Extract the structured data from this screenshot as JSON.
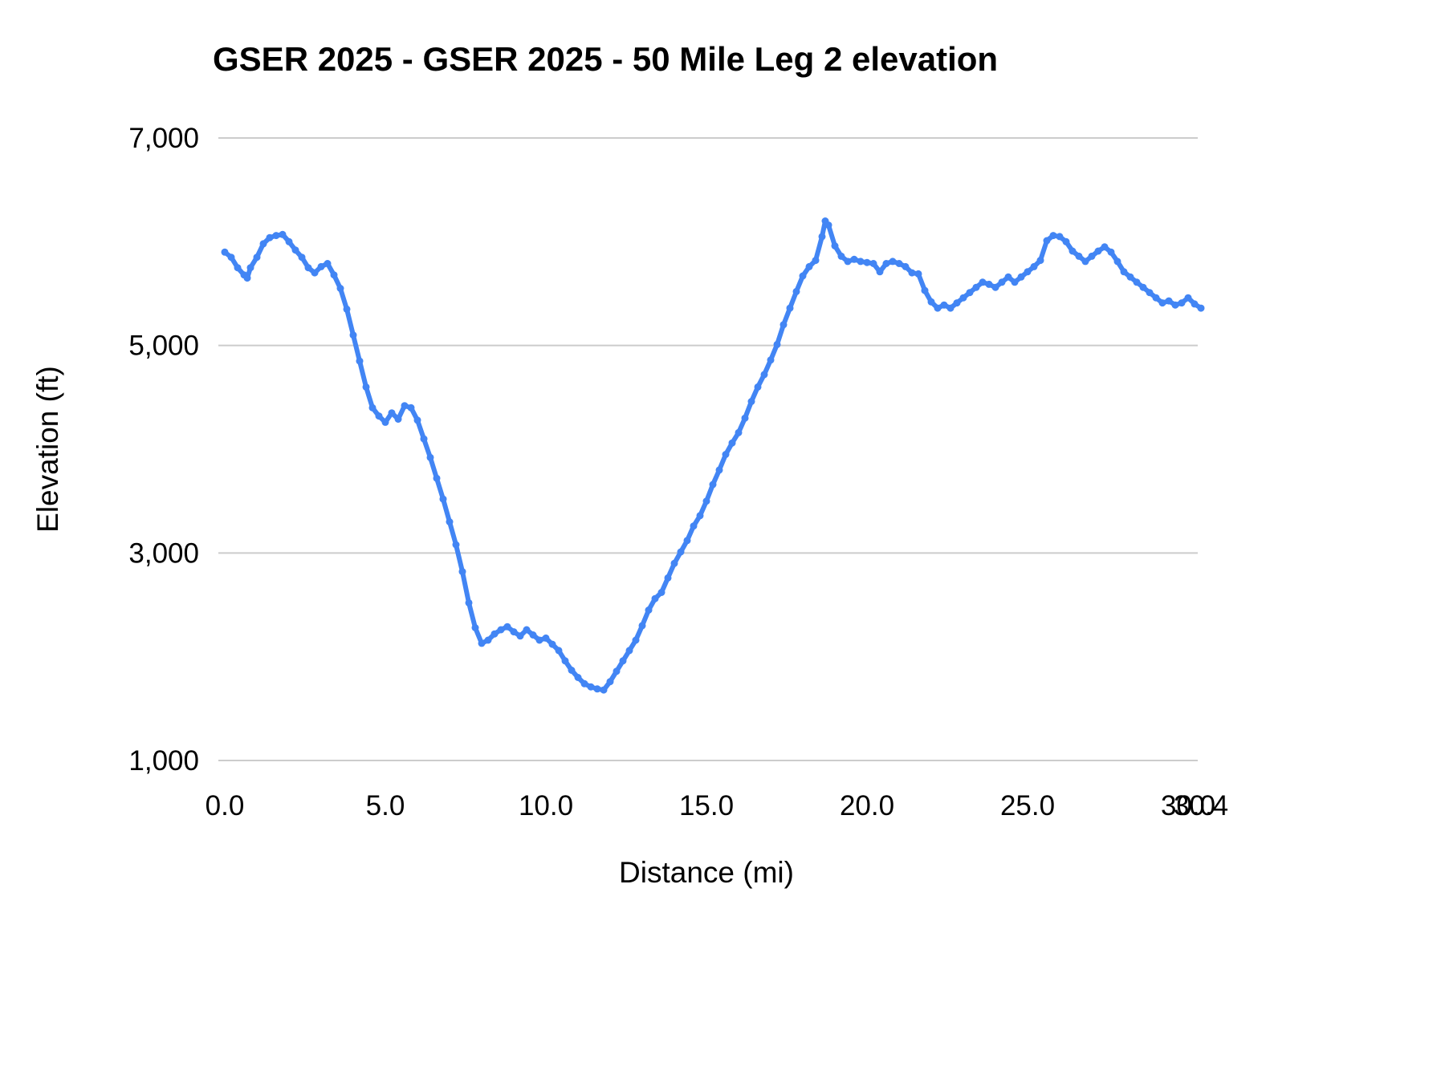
{
  "chart_data": {
    "type": "line",
    "title": "GSER 2025 - GSER 2025 - 50 Mile Leg 2 elevation",
    "xlabel": "Distance (mi)",
    "ylabel": "Elevation (ft)",
    "xlim": [
      0,
      30.4
    ],
    "ylim": [
      1000,
      7000
    ],
    "grid": "horizontal",
    "legend": "none",
    "line_color": "#4285f4",
    "gridline_color": "#cccccc",
    "text_color": "#000000",
    "background_color": "#ffffff",
    "x_ticks": [
      {
        "value": 0,
        "label": "0.0"
      },
      {
        "value": 5,
        "label": "5.0"
      },
      {
        "value": 10,
        "label": "10.0"
      },
      {
        "value": 15,
        "label": "15.0"
      },
      {
        "value": 20,
        "label": "20.0"
      },
      {
        "value": 25,
        "label": "25.0"
      },
      {
        "value": 30,
        "label": "30.0"
      },
      {
        "value": 30.4,
        "label": "30.4"
      }
    ],
    "y_ticks": [
      {
        "value": 1000,
        "label": "1,000"
      },
      {
        "value": 3000,
        "label": "3,000"
      },
      {
        "value": 5000,
        "label": "5,000"
      },
      {
        "value": 7000,
        "label": "7,000"
      }
    ],
    "series": [
      {
        "name": "Elevation",
        "points": [
          [
            0.0,
            5900
          ],
          [
            0.2,
            5850
          ],
          [
            0.4,
            5750
          ],
          [
            0.6,
            5680
          ],
          [
            0.7,
            5650
          ],
          [
            0.8,
            5750
          ],
          [
            1.0,
            5850
          ],
          [
            1.2,
            5980
          ],
          [
            1.4,
            6040
          ],
          [
            1.6,
            6060
          ],
          [
            1.8,
            6070
          ],
          [
            2.0,
            6000
          ],
          [
            2.2,
            5920
          ],
          [
            2.4,
            5850
          ],
          [
            2.6,
            5750
          ],
          [
            2.8,
            5700
          ],
          [
            3.0,
            5760
          ],
          [
            3.2,
            5790
          ],
          [
            3.4,
            5680
          ],
          [
            3.6,
            5550
          ],
          [
            3.8,
            5350
          ],
          [
            4.0,
            5100
          ],
          [
            4.2,
            4850
          ],
          [
            4.4,
            4600
          ],
          [
            4.6,
            4400
          ],
          [
            4.8,
            4320
          ],
          [
            5.0,
            4260
          ],
          [
            5.2,
            4350
          ],
          [
            5.4,
            4290
          ],
          [
            5.6,
            4420
          ],
          [
            5.8,
            4400
          ],
          [
            6.0,
            4280
          ],
          [
            6.2,
            4100
          ],
          [
            6.4,
            3920
          ],
          [
            6.6,
            3720
          ],
          [
            6.8,
            3520
          ],
          [
            7.0,
            3300
          ],
          [
            7.2,
            3080
          ],
          [
            7.4,
            2820
          ],
          [
            7.6,
            2520
          ],
          [
            7.8,
            2280
          ],
          [
            8.0,
            2130
          ],
          [
            8.2,
            2160
          ],
          [
            8.4,
            2220
          ],
          [
            8.6,
            2260
          ],
          [
            8.8,
            2290
          ],
          [
            9.0,
            2240
          ],
          [
            9.2,
            2200
          ],
          [
            9.4,
            2260
          ],
          [
            9.6,
            2210
          ],
          [
            9.8,
            2160
          ],
          [
            10.0,
            2180
          ],
          [
            10.2,
            2120
          ],
          [
            10.4,
            2060
          ],
          [
            10.6,
            1960
          ],
          [
            10.8,
            1870
          ],
          [
            11.0,
            1800
          ],
          [
            11.2,
            1740
          ],
          [
            11.4,
            1710
          ],
          [
            11.6,
            1690
          ],
          [
            11.8,
            1680
          ],
          [
            12.0,
            1760
          ],
          [
            12.2,
            1860
          ],
          [
            12.4,
            1960
          ],
          [
            12.6,
            2060
          ],
          [
            12.8,
            2160
          ],
          [
            13.0,
            2300
          ],
          [
            13.2,
            2450
          ],
          [
            13.4,
            2560
          ],
          [
            13.6,
            2620
          ],
          [
            13.8,
            2760
          ],
          [
            14.0,
            2900
          ],
          [
            14.2,
            3010
          ],
          [
            14.4,
            3120
          ],
          [
            14.6,
            3260
          ],
          [
            14.8,
            3360
          ],
          [
            15.0,
            3500
          ],
          [
            15.2,
            3660
          ],
          [
            15.4,
            3800
          ],
          [
            15.6,
            3950
          ],
          [
            15.8,
            4060
          ],
          [
            16.0,
            4160
          ],
          [
            16.2,
            4300
          ],
          [
            16.4,
            4460
          ],
          [
            16.6,
            4600
          ],
          [
            16.8,
            4720
          ],
          [
            17.0,
            4860
          ],
          [
            17.2,
            5010
          ],
          [
            17.4,
            5200
          ],
          [
            17.6,
            5360
          ],
          [
            17.8,
            5520
          ],
          [
            18.0,
            5670
          ],
          [
            18.2,
            5760
          ],
          [
            18.4,
            5820
          ],
          [
            18.6,
            6050
          ],
          [
            18.7,
            6200
          ],
          [
            18.8,
            6160
          ],
          [
            19.0,
            5960
          ],
          [
            19.2,
            5860
          ],
          [
            19.4,
            5810
          ],
          [
            19.6,
            5830
          ],
          [
            19.8,
            5810
          ],
          [
            20.0,
            5800
          ],
          [
            20.2,
            5790
          ],
          [
            20.4,
            5710
          ],
          [
            20.6,
            5790
          ],
          [
            20.8,
            5810
          ],
          [
            21.0,
            5790
          ],
          [
            21.2,
            5760
          ],
          [
            21.4,
            5700
          ],
          [
            21.6,
            5690
          ],
          [
            21.8,
            5530
          ],
          [
            22.0,
            5420
          ],
          [
            22.2,
            5360
          ],
          [
            22.4,
            5390
          ],
          [
            22.6,
            5360
          ],
          [
            22.8,
            5410
          ],
          [
            23.0,
            5460
          ],
          [
            23.2,
            5510
          ],
          [
            23.4,
            5560
          ],
          [
            23.6,
            5610
          ],
          [
            23.8,
            5590
          ],
          [
            24.0,
            5560
          ],
          [
            24.2,
            5610
          ],
          [
            24.4,
            5660
          ],
          [
            24.6,
            5610
          ],
          [
            24.8,
            5660
          ],
          [
            25.0,
            5710
          ],
          [
            25.2,
            5760
          ],
          [
            25.4,
            5820
          ],
          [
            25.6,
            6010
          ],
          [
            25.8,
            6060
          ],
          [
            26.0,
            6050
          ],
          [
            26.2,
            6000
          ],
          [
            26.4,
            5910
          ],
          [
            26.6,
            5860
          ],
          [
            26.8,
            5810
          ],
          [
            27.0,
            5860
          ],
          [
            27.2,
            5910
          ],
          [
            27.4,
            5950
          ],
          [
            27.6,
            5900
          ],
          [
            27.8,
            5810
          ],
          [
            28.0,
            5710
          ],
          [
            28.2,
            5660
          ],
          [
            28.4,
            5610
          ],
          [
            28.6,
            5560
          ],
          [
            28.8,
            5510
          ],
          [
            29.0,
            5460
          ],
          [
            29.2,
            5410
          ],
          [
            29.4,
            5430
          ],
          [
            29.6,
            5390
          ],
          [
            29.8,
            5410
          ],
          [
            30.0,
            5460
          ],
          [
            30.2,
            5400
          ],
          [
            30.4,
            5360
          ]
        ]
      }
    ]
  }
}
